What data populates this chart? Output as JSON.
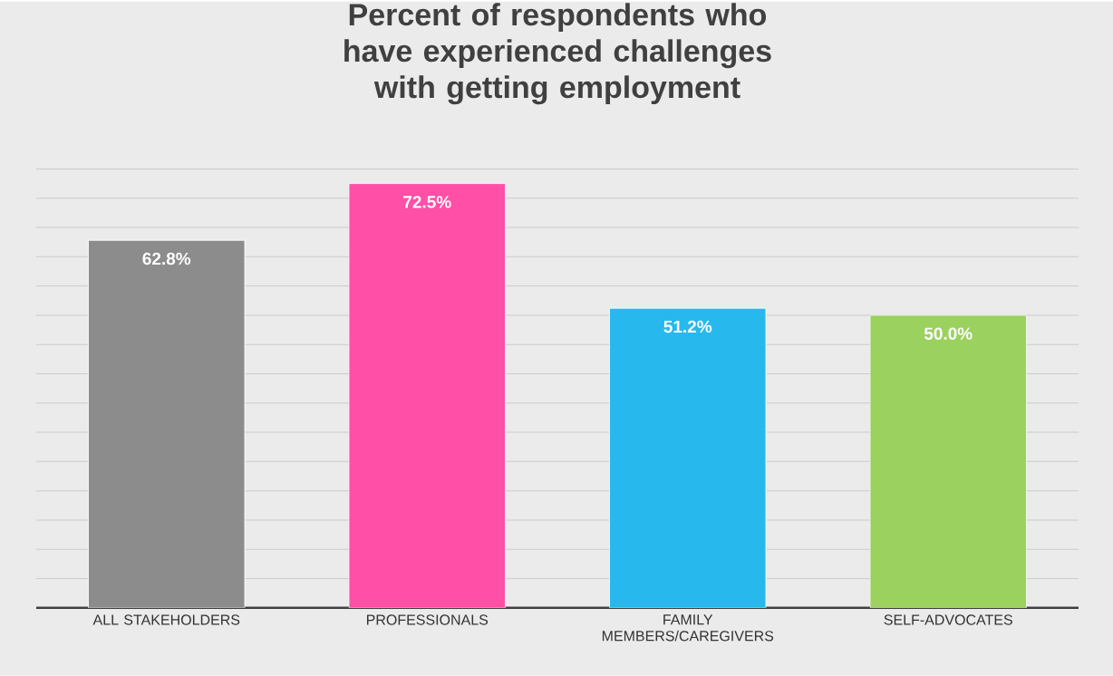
{
  "chart_data": {
    "type": "bar",
    "title": "Percent of respondents who have experienced challenges with getting employment",
    "categories": [
      "ALL STAKEHOLDERS",
      "PROFESSIONALS",
      "FAMILY MEMBERS/CAREGIVERS",
      "SELF-ADVOCATES"
    ],
    "values": [
      62.8,
      72.5,
      51.2,
      50.0
    ],
    "value_labels": [
      "62.8%",
      "72.5%",
      "51.2%",
      "50.0%"
    ],
    "colors": [
      "#8c8c8c",
      "#ff4fa7",
      "#27b9ed",
      "#9bd15f"
    ],
    "grid": "y",
    "tick_labels": "x"
  }
}
